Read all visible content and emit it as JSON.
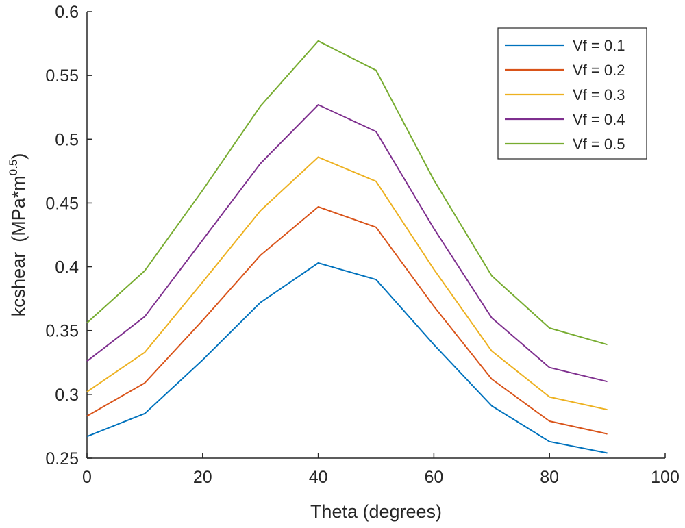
{
  "chart_data": {
    "type": "line",
    "title": "",
    "xlabel": "Theta (degrees)",
    "ylabel_main": "kcshear",
    "ylabel_unit": "(MPa*m",
    "ylabel_exp": "0.5",
    "ylabel_close": ")",
    "xlim": [
      0,
      100
    ],
    "ylim": [
      0.25,
      0.6
    ],
    "xticks": [
      0,
      20,
      40,
      60,
      80,
      100
    ],
    "xtick_labels": [
      "0",
      "20",
      "40",
      "60",
      "80",
      "100"
    ],
    "yticks": [
      0.25,
      0.3,
      0.35,
      0.4,
      0.45,
      0.5,
      0.55,
      0.6
    ],
    "ytick_labels": [
      "0.25",
      "0.3",
      "0.35",
      "0.4",
      "0.45",
      "0.5",
      "0.55",
      "0.6"
    ],
    "grid": false,
    "legend_position": "top-right",
    "x": [
      0,
      10,
      20,
      30,
      40,
      50,
      60,
      70,
      80,
      90
    ],
    "series": [
      {
        "name": "Vf = 0.1",
        "color": "#0072BD",
        "values": [
          0.267,
          0.285,
          0.327,
          0.372,
          0.403,
          0.39,
          0.339,
          0.291,
          0.263,
          0.254
        ]
      },
      {
        "name": "Vf = 0.2",
        "color": "#D95319",
        "values": [
          0.283,
          0.309,
          0.358,
          0.409,
          0.447,
          0.431,
          0.369,
          0.312,
          0.279,
          0.269
        ]
      },
      {
        "name": "Vf = 0.3",
        "color": "#EDB120",
        "values": [
          0.302,
          0.333,
          0.388,
          0.444,
          0.486,
          0.467,
          0.398,
          0.334,
          0.298,
          0.288
        ]
      },
      {
        "name": "Vf = 0.4",
        "color": "#7E2F8E",
        "values": [
          0.326,
          0.361,
          0.421,
          0.481,
          0.527,
          0.506,
          0.43,
          0.36,
          0.321,
          0.31
        ]
      },
      {
        "name": "Vf = 0.5",
        "color": "#77AC30",
        "values": [
          0.356,
          0.397,
          0.46,
          0.526,
          0.577,
          0.554,
          0.468,
          0.393,
          0.352,
          0.339
        ]
      }
    ]
  }
}
